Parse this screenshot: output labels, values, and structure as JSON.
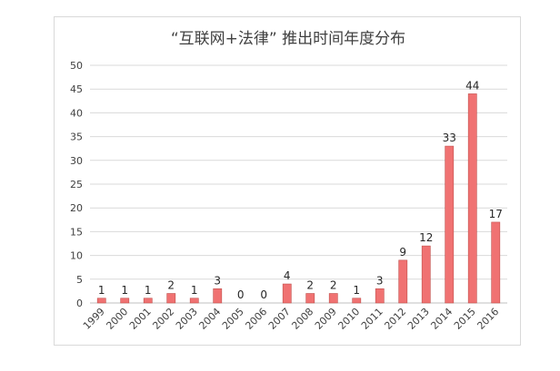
{
  "chart_data": {
    "type": "bar",
    "title": "“互联网+法律” 推出时间年度分布",
    "categories": [
      "1999",
      "2000",
      "2001",
      "2002",
      "2003",
      "2004",
      "2005",
      "2006",
      "2007",
      "2008",
      "2009",
      "2010",
      "2011",
      "2012",
      "2013",
      "2014",
      "2015",
      "2016"
    ],
    "values": [
      1,
      1,
      1,
      2,
      1,
      3,
      0,
      0,
      4,
      2,
      2,
      1,
      3,
      9,
      12,
      33,
      44,
      17
    ],
    "ylim": [
      0,
      50
    ],
    "yticks": [
      0,
      5,
      10,
      15,
      20,
      25,
      30,
      35,
      40,
      45,
      50
    ],
    "grid": true,
    "legend": "none",
    "bar_color": "#f07272",
    "bar_border_color": "#c0504d"
  }
}
